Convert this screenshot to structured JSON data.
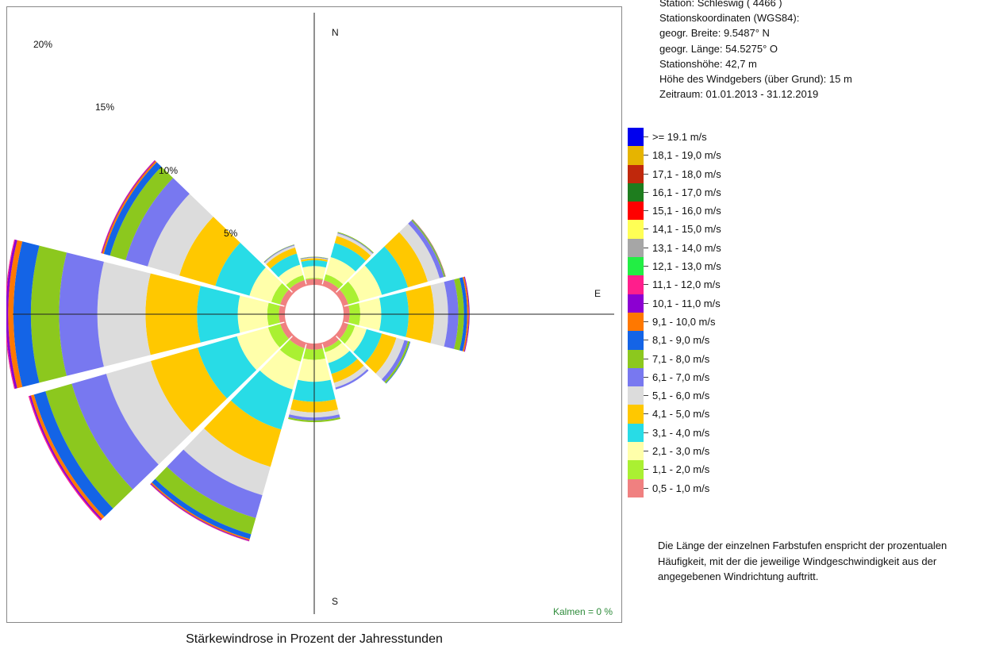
{
  "caption": "Stärkewindrose in Prozent der Jahresstunden",
  "station": {
    "lines": [
      "Station:  Schleswig  ( 4466 )",
      "Stationskoordinaten (WGS84):",
      "geogr. Breite: 9.5487° N",
      "geogr. Länge: 54.5275° O",
      "Stationshöhe: 42,7 m",
      "Höhe des Windgebers (über Grund): 15 m",
      "Zeitraum: 01.01.2013 - 31.12.2019"
    ]
  },
  "legend": [
    {
      "label": ">= 19.1 m/s",
      "color": "#0000ee"
    },
    {
      "label": "18,1 - 19,0 m/s",
      "color": "#e6b400"
    },
    {
      "label": "17,1 - 18,0 m/s",
      "color": "#c0280c"
    },
    {
      "label": "16,1 - 17,0 m/s",
      "color": "#1e7d1e"
    },
    {
      "label": "15,1 - 16,0 m/s",
      "color": "#ff0000"
    },
    {
      "label": "14,1 - 15,0 m/s",
      "color": "#ffff55"
    },
    {
      "label": "13,1 - 14,0 m/s",
      "color": "#a6a6a6"
    },
    {
      "label": "12,1 - 13,0 m/s",
      "color": "#22ee44"
    },
    {
      "label": "11,1 - 12,0 m/s",
      "color": "#ff1e8c"
    },
    {
      "label": "10,1 - 11,0 m/s",
      "color": "#8c00d2"
    },
    {
      "label": "9,1 - 10,0 m/s",
      "color": "#ff7800"
    },
    {
      "label": "8,1 - 9,0 m/s",
      "color": "#1464e6"
    },
    {
      "label": "7,1 - 8,0 m/s",
      "color": "#8cc81e"
    },
    {
      "label": "6,1 - 7,0 m/s",
      "color": "#7878f0"
    },
    {
      "label": "5,1 - 6,0 m/s",
      "color": "#dcdcdc"
    },
    {
      "label": "4,1 - 5,0 m/s",
      "color": "#ffc800"
    },
    {
      "label": "3,1 - 4,0 m/s",
      "color": "#28dce6"
    },
    {
      "label": "2,1 - 3,0 m/s",
      "color": "#ffffaa"
    },
    {
      "label": "1,1 - 2,0 m/s",
      "color": "#aaf032"
    },
    {
      "label": "0,5 - 1,0 m/s",
      "color": "#f08080"
    }
  ],
  "note": "Die Länge der einzelnen Farbstufen enspricht der prozentualen Häufigkeit, mit der die jeweilige Windgeschwindigkeit aus der angegebenen Windrichtung auftritt.",
  "chart_data": {
    "type": "wind-rose",
    "compass": {
      "n": "N",
      "e": "E",
      "s": "S"
    },
    "rings": [
      {
        "label": "5%",
        "value": 5
      },
      {
        "label": "10%",
        "value": 10
      },
      {
        "label": "15%",
        "value": 15
      },
      {
        "label": "20%",
        "value": 20
      }
    ],
    "calm_label": "Kalmen  =  0 %",
    "directions_deg": [
      0,
      30,
      60,
      90,
      120,
      150,
      180,
      210,
      240,
      270,
      300,
      330
    ],
    "speed_classes": [
      "0,5 - 1,0 m/s",
      "1,1 - 2,0 m/s",
      "2,1 - 3,0 m/s",
      "3,1 - 4,0 m/s",
      "4,1 - 5,0 m/s",
      "5,1 - 6,0 m/s",
      "6,1 - 7,0 m/s",
      "7,1 - 8,0 m/s",
      "8,1 - 9,0 m/s",
      "9,1 - 10,0 m/s",
      "10,1 - 11,0 m/s",
      "11,1 - 12,0 m/s",
      "12,1 - 13,0 m/s",
      "13,1 - 14,0 m/s",
      "14,1 - 15,0 m/s",
      "15,1 - 16,0 m/s",
      "16,1 - 17,0 m/s",
      "17,1 - 18,0 m/s",
      "18,1 - 19,0 m/s",
      ">= 19.1 m/s"
    ],
    "cumulative_percent": [
      [
        0.27,
        0.32,
        0.93,
        1.23,
        1.33,
        1.36,
        1.39,
        1.41
      ],
      [
        0.27,
        0.59,
        1.51,
        2.27,
        2.64,
        2.78,
        2.82,
        2.86
      ],
      [
        0.27,
        0.87,
        2.07,
        3.47,
        4.53,
        5.17,
        5.4,
        5.46,
        5.48,
        5.5
      ],
      [
        0.27,
        0.82,
        1.9,
        3.31,
        4.62,
        5.34,
        5.87,
        6.16,
        6.33,
        6.41,
        6.45
      ],
      [
        0.27,
        0.63,
        1.25,
        2.07,
        2.85,
        3.28,
        3.47,
        3.57,
        3.6
      ],
      [
        0.27,
        0.49,
        1.07,
        1.65,
        2.13,
        2.38,
        2.48
      ],
      [
        0.27,
        0.8,
        1.93,
        2.96,
        3.51,
        3.77,
        3.92,
        4.01
      ],
      [
        0.27,
        0.99,
        2.48,
        4.63,
        6.63,
        8.15,
        9.38,
        10.25,
        10.5,
        10.57,
        10.61,
        10.63
      ],
      [
        0.27,
        0.92,
        2.59,
        4.7,
        7.21,
        9.6,
        11.45,
        12.86,
        13.48,
        13.64,
        13.72,
        13.77
      ],
      [
        0.27,
        0.87,
        2.39,
        4.49,
        7.14,
        9.62,
        11.6,
        13.05,
        13.95,
        14.22,
        14.34,
        14.38
      ],
      [
        0.27,
        0.75,
        1.92,
        3.75,
        5.68,
        7.38,
        8.56,
        9.4,
        9.73,
        9.82,
        9.86,
        9.88
      ],
      [
        0.27,
        0.54,
        1.1,
        1.7,
        2.02,
        2.13,
        2.17,
        2.19
      ]
    ]
  }
}
